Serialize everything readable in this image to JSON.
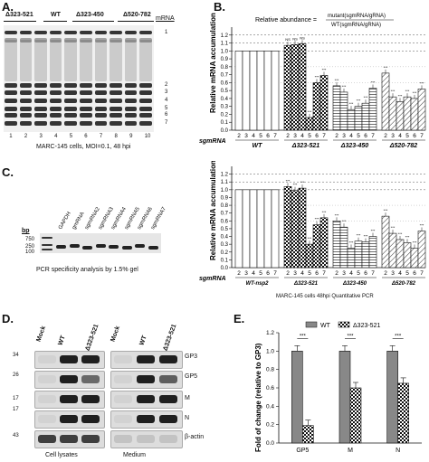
{
  "panelA": {
    "label": "A.",
    "groups": [
      "Δ323-521",
      "WT",
      "Δ323-450",
      "Δ520-782"
    ],
    "mrna_header": "mRNA",
    "band_labels": [
      "1",
      "2",
      "3",
      "4",
      "5",
      "6",
      "7"
    ],
    "lane_numbers": [
      "1",
      "2",
      "3",
      "4",
      "5",
      "6",
      "7",
      "8",
      "9",
      "10"
    ],
    "caption": "MARC-145 cells, MOI=0.1, 48 hpi"
  },
  "panelB": {
    "label": "B.",
    "formula_lhs": "Relative abundance =",
    "formula_num": "mutant(sgmRNA/gRNA)",
    "formula_den": "WT(sgmRNA/gRNA)",
    "ns_labels": [
      "NS",
      "NS",
      "NS"
    ],
    "star_label": "***",
    "xlabel_prefix": "sgmRNA"
  },
  "panelC": {
    "label": "C.",
    "bp_label": "bp",
    "ladder": [
      "750",
      "250",
      "100"
    ],
    "lane_labels": [
      "GAPDH",
      "gmRNA",
      "sgmRNA2",
      "sgmRNA3",
      "sgmRNA4",
      "sgmRNA5",
      "sgmRNA6",
      "sgmRNA7"
    ],
    "caption": "PCR specificity analysis by 1.5% gel",
    "xlabel_prefix": "sgmRNA",
    "bottom_caption": "MARC-145 cells  48hpi  Quantitative PCR"
  },
  "panelD": {
    "label": "D.",
    "columns": [
      "Mock",
      "WT",
      "Δ323-521",
      "Mock",
      "WT",
      "Δ323-521"
    ],
    "markers": [
      "34",
      "26",
      "17",
      "17",
      "43"
    ],
    "row_labels": [
      "GP3",
      "GP5",
      "M",
      "N",
      "β-actin"
    ],
    "bottom_left": "Cell lysates",
    "bottom_right": "Medium"
  },
  "panelE": {
    "label": "E.",
    "legend_wt": "WT",
    "legend_mut": "Δ323-521",
    "star_label": "***"
  },
  "chart_data": [
    {
      "type": "bar",
      "title": "",
      "ylabel": "Relative mRNA accumulation",
      "ylim": [
        0,
        1.3
      ],
      "yticks": [
        "0.0",
        "0.1",
        "0.2",
        "0.3",
        "0.4",
        "0.5",
        "0.6",
        "0.7",
        "0.8",
        "0.9",
        "1.0",
        "1.1",
        "1.2"
      ],
      "categories": [
        "2",
        "3",
        "4",
        "5",
        "6",
        "7"
      ],
      "groups": [
        {
          "name": "WT",
          "values": [
            1.0,
            1.0,
            1.0,
            1.0,
            1.0,
            1.0
          ]
        },
        {
          "name": "Δ323-521",
          "values": [
            1.07,
            1.08,
            1.09,
            0.16,
            0.6,
            0.69
          ]
        },
        {
          "name": "Δ323-450",
          "values": [
            0.56,
            0.48,
            0.26,
            0.3,
            0.34,
            0.53
          ]
        },
        {
          "name": "Δ520-782",
          "values": [
            0.72,
            0.42,
            0.36,
            0.42,
            0.4,
            0.52
          ]
        }
      ]
    },
    {
      "type": "bar",
      "title": "",
      "ylabel": "Relative mRNA accumulation",
      "ylim": [
        0,
        1.3
      ],
      "yticks": [
        "0.0",
        "0.1",
        "0.2",
        "0.3",
        "0.4",
        "0.5",
        "0.6",
        "0.7",
        "0.8",
        "0.9",
        "1.0",
        "1.1",
        "1.2"
      ],
      "categories": [
        "2",
        "3",
        "4",
        "5",
        "6",
        "7"
      ],
      "groups": [
        {
          "name": "WT-nsp2",
          "values": [
            1.0,
            1.0,
            1.0,
            1.0,
            1.0,
            1.0
          ]
        },
        {
          "name": "Δ323-521",
          "values": [
            1.04,
            0.99,
            1.02,
            0.3,
            0.55,
            0.64
          ]
        },
        {
          "name": "Δ323-450",
          "values": [
            0.6,
            0.52,
            0.25,
            0.34,
            0.33,
            0.4
          ]
        },
        {
          "name": "Δ520-782",
          "values": [
            0.66,
            0.44,
            0.36,
            0.32,
            0.25,
            0.47
          ]
        }
      ]
    },
    {
      "type": "bar",
      "title": "",
      "ylabel": "Fold of change (relative to GP3)",
      "ylim": [
        0,
        1.2
      ],
      "yticks": [
        "0.0",
        "0.2",
        "0.4",
        "0.6",
        "0.8",
        "1.0",
        "1.2"
      ],
      "categories": [
        "GP5",
        "M",
        "N"
      ],
      "series": [
        {
          "name": "WT",
          "values": [
            1.0,
            1.0,
            1.0
          ]
        },
        {
          "name": "Δ323-521",
          "values": [
            0.19,
            0.6,
            0.65
          ]
        }
      ]
    }
  ]
}
